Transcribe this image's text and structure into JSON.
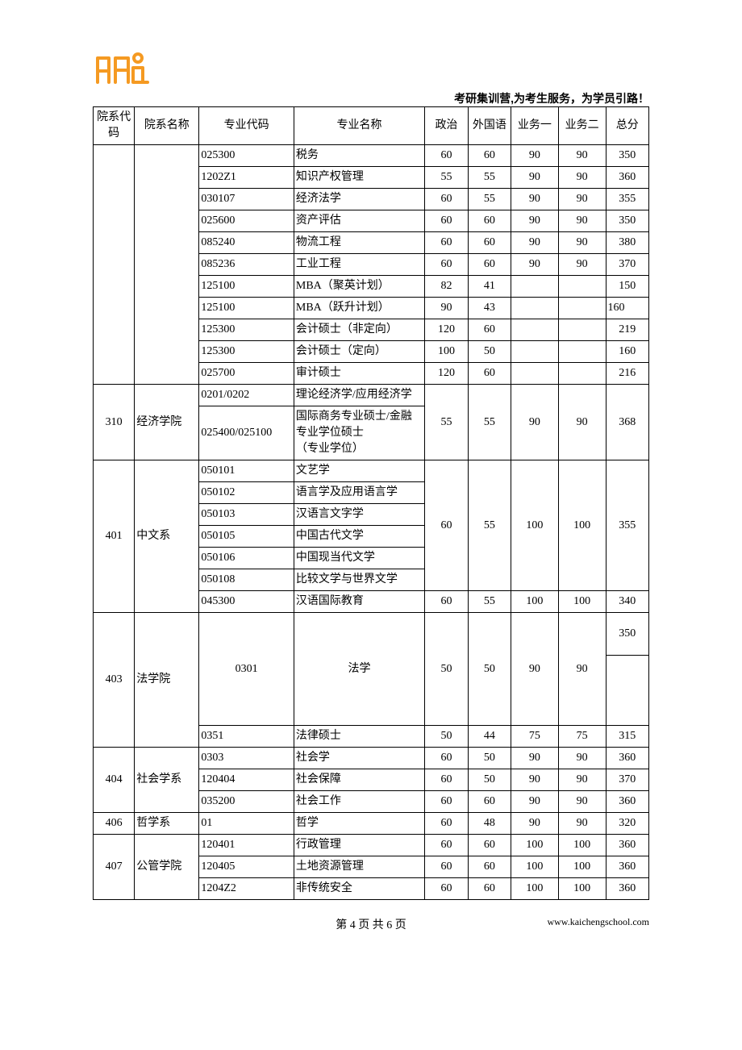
{
  "header": {
    "slogan": "考研集训营,为考生服务，为学员引路！"
  },
  "table": {
    "columns": [
      "院系代码",
      "院系名称",
      "专业代码",
      "专业名称",
      "政治",
      "外国语",
      "业务一",
      "业务二",
      "总分"
    ],
    "group_none": [
      {
        "code": "025300",
        "name": "税务",
        "c5": "60",
        "c6": "60",
        "c7": "90",
        "c8": "90",
        "c9": "350"
      },
      {
        "code": "1202Z1",
        "name": "知识产权管理",
        "c5": "55",
        "c6": "55",
        "c7": "90",
        "c8": "90",
        "c9": "360"
      },
      {
        "code": "030107",
        "name": "经济法学",
        "c5": "60",
        "c6": "55",
        "c7": "90",
        "c8": "90",
        "c9": "355"
      },
      {
        "code": "025600",
        "name": "资产评估",
        "c5": "60",
        "c6": "60",
        "c7": "90",
        "c8": "90",
        "c9": "350"
      },
      {
        "code": "085240",
        "name": "物流工程",
        "c5": "60",
        "c6": "60",
        "c7": "90",
        "c8": "90",
        "c9": "380"
      },
      {
        "code": "085236",
        "name": "工业工程",
        "c5": "60",
        "c6": "60",
        "c7": "90",
        "c8": "90",
        "c9": "370"
      },
      {
        "code": "125100",
        "name": "MBA（聚英计划）",
        "c5": "82",
        "c6": "41",
        "c7": "",
        "c8": "",
        "c9": "150"
      },
      {
        "code": "125100",
        "name": "MBA（跃升计划）",
        "c5": "90",
        "c6": "43",
        "c7": "",
        "c8": "",
        "c9": "160",
        "c9align": "left"
      },
      {
        "code": "125300",
        "name": "会计硕士（非定向）",
        "c5": "120",
        "c6": "60",
        "c7": "",
        "c8": "",
        "c9": "219"
      },
      {
        "code": "125300",
        "name": "会计硕士（定向）",
        "c5": "100",
        "c6": "50",
        "c7": "",
        "c8": "",
        "c9": "160"
      },
      {
        "code": "025700",
        "name": "审计硕士",
        "c5": "120",
        "c6": "60",
        "c7": "",
        "c8": "",
        "c9": "216"
      }
    ],
    "g310": {
      "dept_code": "310",
      "dept_name": "经济学院",
      "r1": {
        "code": "0201/0202",
        "name": "理论经济学/应用经济学"
      },
      "r2": {
        "code": "025400/025100",
        "name": "国际商务专业硕士/金融专业学位硕士\n（专业学位）"
      },
      "c5": "55",
      "c6": "55",
      "c7": "90",
      "c8": "90",
      "c9": "368"
    },
    "g401": {
      "dept_code": "401",
      "dept_name": "中文系",
      "rows": [
        {
          "code": "050101",
          "name": "文艺学"
        },
        {
          "code": "050102",
          "name": "语言学及应用语言学"
        },
        {
          "code": "050103",
          "name": "汉语言文字学"
        },
        {
          "code": "050105",
          "name": "中国古代文学"
        },
        {
          "code": "050106",
          "name": "中国现当代文学"
        },
        {
          "code": "050108",
          "name": "比较文学与世界文学"
        }
      ],
      "c5": "60",
      "c6": "55",
      "c7": "100",
      "c8": "100",
      "c9": "355",
      "extra": {
        "code": "045300",
        "name": "汉语国际教育",
        "c5": "60",
        "c6": "55",
        "c7": "100",
        "c8": "100",
        "c9": "340"
      }
    },
    "g403": {
      "dept_code": "403",
      "dept_name": "法学院",
      "r1": {
        "code": "0301",
        "name": "法学"
      },
      "c5": "50",
      "c6": "50",
      "c7": "90",
      "c8": "90",
      "c9_r1": "350",
      "r2": {
        "code": "0351",
        "name": "法律硕士",
        "c5": "50",
        "c6": "44",
        "c7": "75",
        "c8": "75",
        "c9": "315"
      }
    },
    "g404": {
      "dept_code": "404",
      "dept_name": "社会学系",
      "rows": [
        {
          "code": "0303",
          "name": "社会学",
          "c5": "60",
          "c6": "50",
          "c7": "90",
          "c8": "90",
          "c9": "360"
        },
        {
          "code": "120404",
          "name": "社会保障",
          "c5": "60",
          "c6": "50",
          "c7": "90",
          "c8": "90",
          "c9": "370"
        },
        {
          "code": "035200",
          "name": "社会工作",
          "c5": "60",
          "c6": "60",
          "c7": "90",
          "c8": "90",
          "c9": "360"
        }
      ]
    },
    "g406": {
      "dept_code": "406",
      "dept_name": "哲学系",
      "code": "01",
      "name": "哲学",
      "c5": "60",
      "c6": "48",
      "c7": "90",
      "c8": "90",
      "c9": "320"
    },
    "g407": {
      "dept_code": "407",
      "dept_name": "公管学院",
      "rows": [
        {
          "code": "120401",
          "name": "行政管理",
          "c5": "60",
          "c6": "60",
          "c7": "100",
          "c8": "100",
          "c9": "360"
        },
        {
          "code": "120405",
          "name": "土地资源管理",
          "c5": "60",
          "c6": "60",
          "c7": "100",
          "c8": "100",
          "c9": "360"
        },
        {
          "code": "1204Z2",
          "name": "非传统安全",
          "c5": "60",
          "c6": "60",
          "c7": "100",
          "c8": "100",
          "c9": "360"
        }
      ]
    }
  },
  "footer": {
    "page_label": "第 4 页 共 6 页",
    "url": "www.kaichengschool.com"
  }
}
